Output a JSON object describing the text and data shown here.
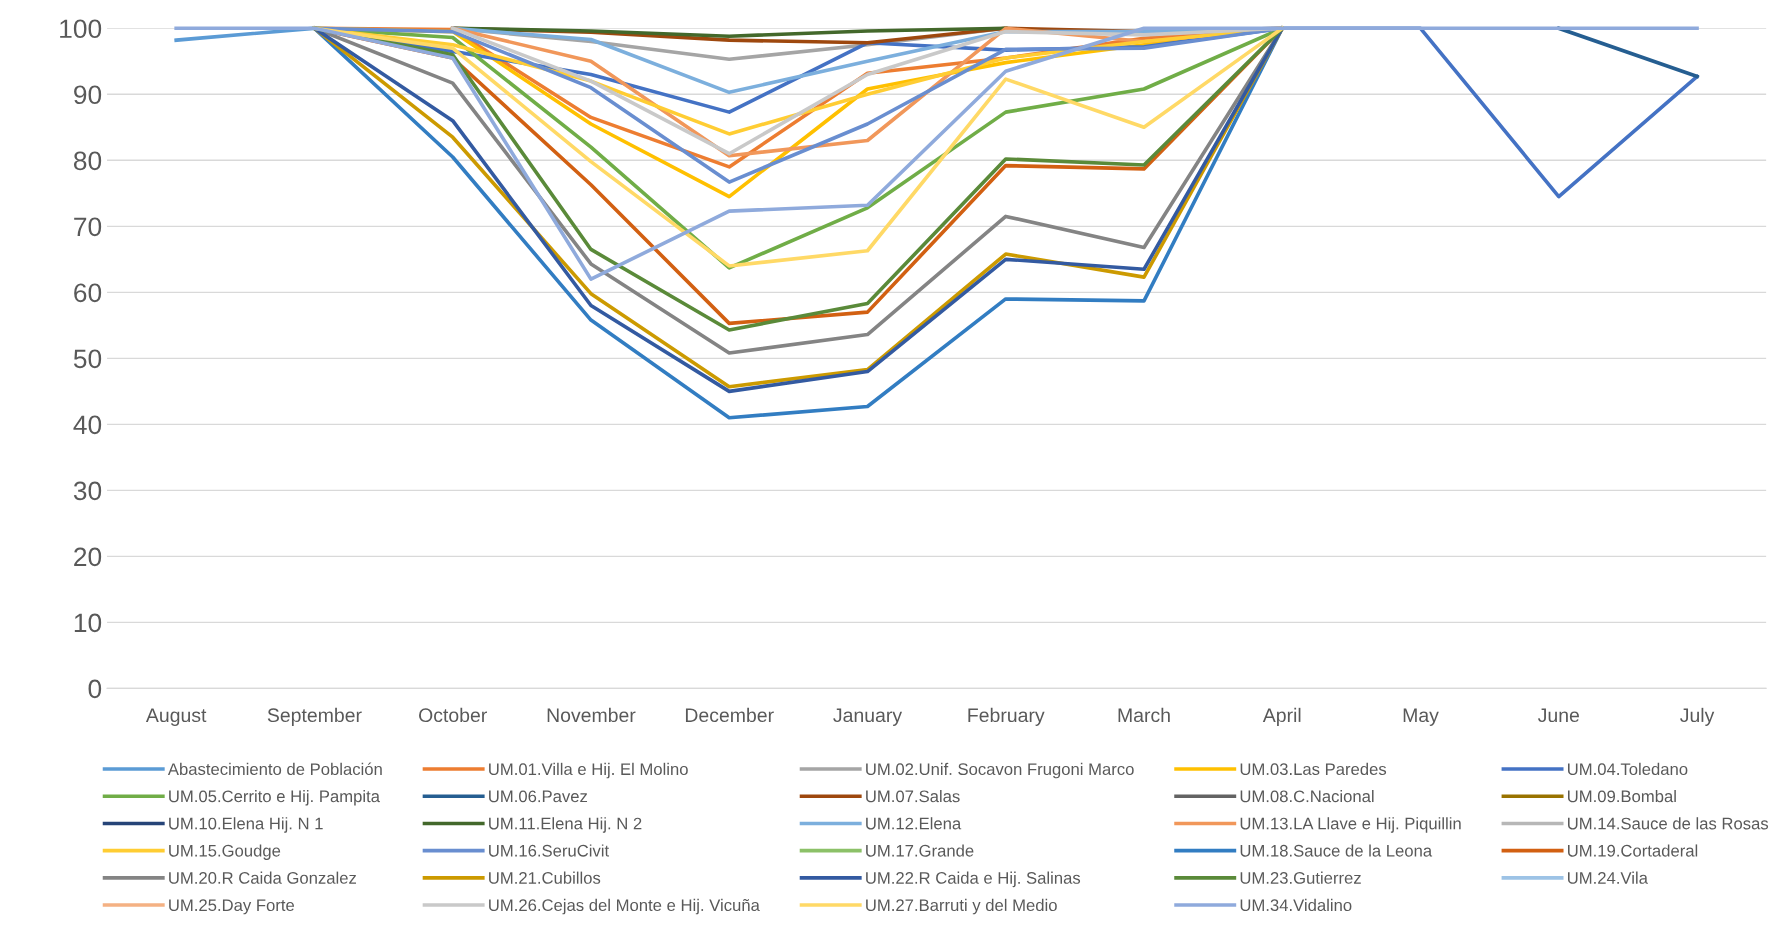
{
  "chart_data": {
    "type": "line",
    "categories": [
      "August",
      "September",
      "October",
      "November",
      "December",
      "January",
      "February",
      "March",
      "April",
      "May",
      "June",
      "July"
    ],
    "ylim": [
      0,
      100
    ],
    "yticks": [
      0,
      10,
      20,
      30,
      40,
      50,
      60,
      70,
      80,
      90,
      100
    ],
    "grid": "y",
    "legend": "bottom",
    "marker": "none",
    "line_style": "solid",
    "series": [
      {
        "name": "Abastecimiento de Población",
        "color": "#5b9bd5",
        "values": [
          98.2,
          100,
          null,
          null,
          null,
          null,
          null,
          null,
          null,
          null,
          null,
          null
        ]
      },
      {
        "name": "UM.01.Villa e Hij. El Molino",
        "color": "#ed7d31",
        "values": [
          null,
          100,
          99.8,
          86.5,
          79,
          93.2,
          95.5,
          98.5,
          100,
          null,
          null,
          null
        ]
      },
      {
        "name": "UM.02.Unif. Socavon Frugoni Marco",
        "color": "#a5a5a5",
        "values": [
          null,
          null,
          100,
          98,
          95.3,
          97.5,
          100,
          null,
          null,
          null,
          null,
          null
        ]
      },
      {
        "name": "UM.03.Las Paredes",
        "color": "#ffc000",
        "values": [
          null,
          100,
          99.5,
          85.5,
          74.5,
          90.8,
          94.8,
          97.5,
          100,
          null,
          null,
          null
        ]
      },
      {
        "name": "UM.04.Toledano",
        "color": "#4472c4",
        "values": [
          null,
          100,
          96.5,
          93,
          87.3,
          97.8,
          96.7,
          97.2,
          100,
          100,
          74.5,
          92.7
        ]
      },
      {
        "name": "UM.05.Cerrito e Hij. Pampita",
        "color": "#70ad47",
        "values": [
          null,
          100,
          98.6,
          82,
          63.7,
          72.8,
          87.3,
          90.8,
          100,
          null,
          null,
          null
        ]
      },
      {
        "name": "UM.06.Pavez",
        "color": "#255e91",
        "values": [
          null,
          null,
          null,
          null,
          null,
          null,
          null,
          null,
          null,
          null,
          100,
          92.7
        ]
      },
      {
        "name": "UM.07.Salas",
        "color": "#9e480e",
        "values": [
          null,
          null,
          100,
          99.4,
          98.2,
          97.8,
          100,
          99.5,
          100,
          null,
          null,
          null
        ]
      },
      {
        "name": "UM.08.C.Nacional",
        "color": "#636363",
        "values": [
          null,
          null,
          null,
          null,
          null,
          null,
          null,
          null,
          null,
          null,
          null,
          null
        ]
      },
      {
        "name": "UM.09.Bombal",
        "color": "#997300",
        "values": [
          null,
          null,
          null,
          null,
          null,
          null,
          null,
          null,
          null,
          null,
          null,
          null
        ]
      },
      {
        "name": "UM.10.Elena Hij. N 1",
        "color": "#264478",
        "values": [
          null,
          null,
          null,
          null,
          null,
          null,
          null,
          null,
          null,
          null,
          null,
          null
        ]
      },
      {
        "name": "UM.11.Elena Hij. N 2",
        "color": "#43682b",
        "values": [
          null,
          null,
          100,
          99.6,
          98.8,
          99.6,
          100,
          null,
          null,
          null,
          null,
          null
        ]
      },
      {
        "name": "UM.12.Elena",
        "color": "#7cafdd",
        "values": [
          null,
          null,
          100,
          98.3,
          90.3,
          95,
          99.5,
          99.5,
          100,
          null,
          null,
          null
        ]
      },
      {
        "name": "UM.13.LA Llave e Hij. Piquillin",
        "color": "#f1975a",
        "values": [
          null,
          null,
          100,
          95,
          80.7,
          83,
          100,
          98,
          100,
          null,
          null,
          null
        ]
      },
      {
        "name": "UM.14.Sauce de las Rosas",
        "color": "#b7b7b7",
        "values": [
          null,
          null,
          null,
          null,
          null,
          null,
          null,
          null,
          null,
          null,
          null,
          null
        ]
      },
      {
        "name": "UM.15.Goudge",
        "color": "#ffcd33",
        "values": [
          null,
          100,
          97.5,
          92,
          84,
          90,
          95.5,
          98,
          100,
          null,
          null,
          null
        ]
      },
      {
        "name": "UM.16.SeruCivit",
        "color": "#698ed0",
        "values": [
          null,
          100,
          99.5,
          91,
          76.7,
          85.5,
          96.8,
          97,
          100,
          null,
          null,
          null
        ]
      },
      {
        "name": "UM.17.Grande",
        "color": "#8cc168",
        "values": [
          null,
          null,
          null,
          null,
          null,
          null,
          null,
          null,
          null,
          null,
          null,
          null
        ]
      },
      {
        "name": "UM.18.Sauce de la Leona",
        "color": "#327dc2",
        "values": [
          null,
          100,
          80.5,
          55.8,
          41,
          42.7,
          59,
          58.7,
          100,
          null,
          null,
          null
        ]
      },
      {
        "name": "UM.19.Cortaderal",
        "color": "#d26012",
        "values": [
          null,
          100,
          95.5,
          76.3,
          55.3,
          57,
          79.2,
          78.7,
          100,
          null,
          null,
          null
        ]
      },
      {
        "name": "UM.20.R Caida Gonzalez",
        "color": "#848484",
        "values": [
          null,
          100,
          91.7,
          64.3,
          50.8,
          53.6,
          71.5,
          66.8,
          100,
          null,
          null,
          null
        ]
      },
      {
        "name": "UM.21.Cubillos",
        "color": "#cc9a00",
        "values": [
          null,
          100,
          83.5,
          59.8,
          45.7,
          48.3,
          65.8,
          62.3,
          100,
          null,
          null,
          null
        ]
      },
      {
        "name": "UM.22.R Caida e Hij. Salinas",
        "color": "#335aa1",
        "values": [
          null,
          100,
          86,
          58,
          45,
          48,
          65,
          63.5,
          100,
          null,
          null,
          null
        ]
      },
      {
        "name": "UM.23.Gutierrez",
        "color": "#5a8a39",
        "values": [
          null,
          100,
          96,
          66.5,
          54.3,
          58.3,
          80.2,
          79.3,
          100,
          null,
          null,
          null
        ]
      },
      {
        "name": "UM.24.Vila",
        "color": "#9dc3e6",
        "values": [
          null,
          null,
          null,
          null,
          null,
          null,
          null,
          null,
          null,
          null,
          null,
          null
        ]
      },
      {
        "name": "UM.25.Day Forte",
        "color": "#f4b183",
        "values": [
          null,
          null,
          null,
          null,
          null,
          null,
          null,
          null,
          null,
          null,
          null,
          null
        ]
      },
      {
        "name": "UM.26.Cejas del Monte e Hij. Vicuña",
        "color": "#c9c9c9",
        "values": [
          null,
          null,
          100,
          92,
          81,
          93,
          99.5,
          99,
          100,
          null,
          null,
          null
        ]
      },
      {
        "name": "UM.27.Barruti y del Medio",
        "color": "#ffd966",
        "values": [
          null,
          100,
          97,
          79.8,
          64,
          66.3,
          92.3,
          85,
          100,
          null,
          null,
          null
        ]
      },
      {
        "name": "UM.34.Vidalino",
        "color": "#8faadc",
        "values": [
          100,
          100,
          95.5,
          62,
          72.3,
          73.2,
          93.5,
          100,
          100,
          100,
          100,
          100
        ]
      }
    ]
  }
}
